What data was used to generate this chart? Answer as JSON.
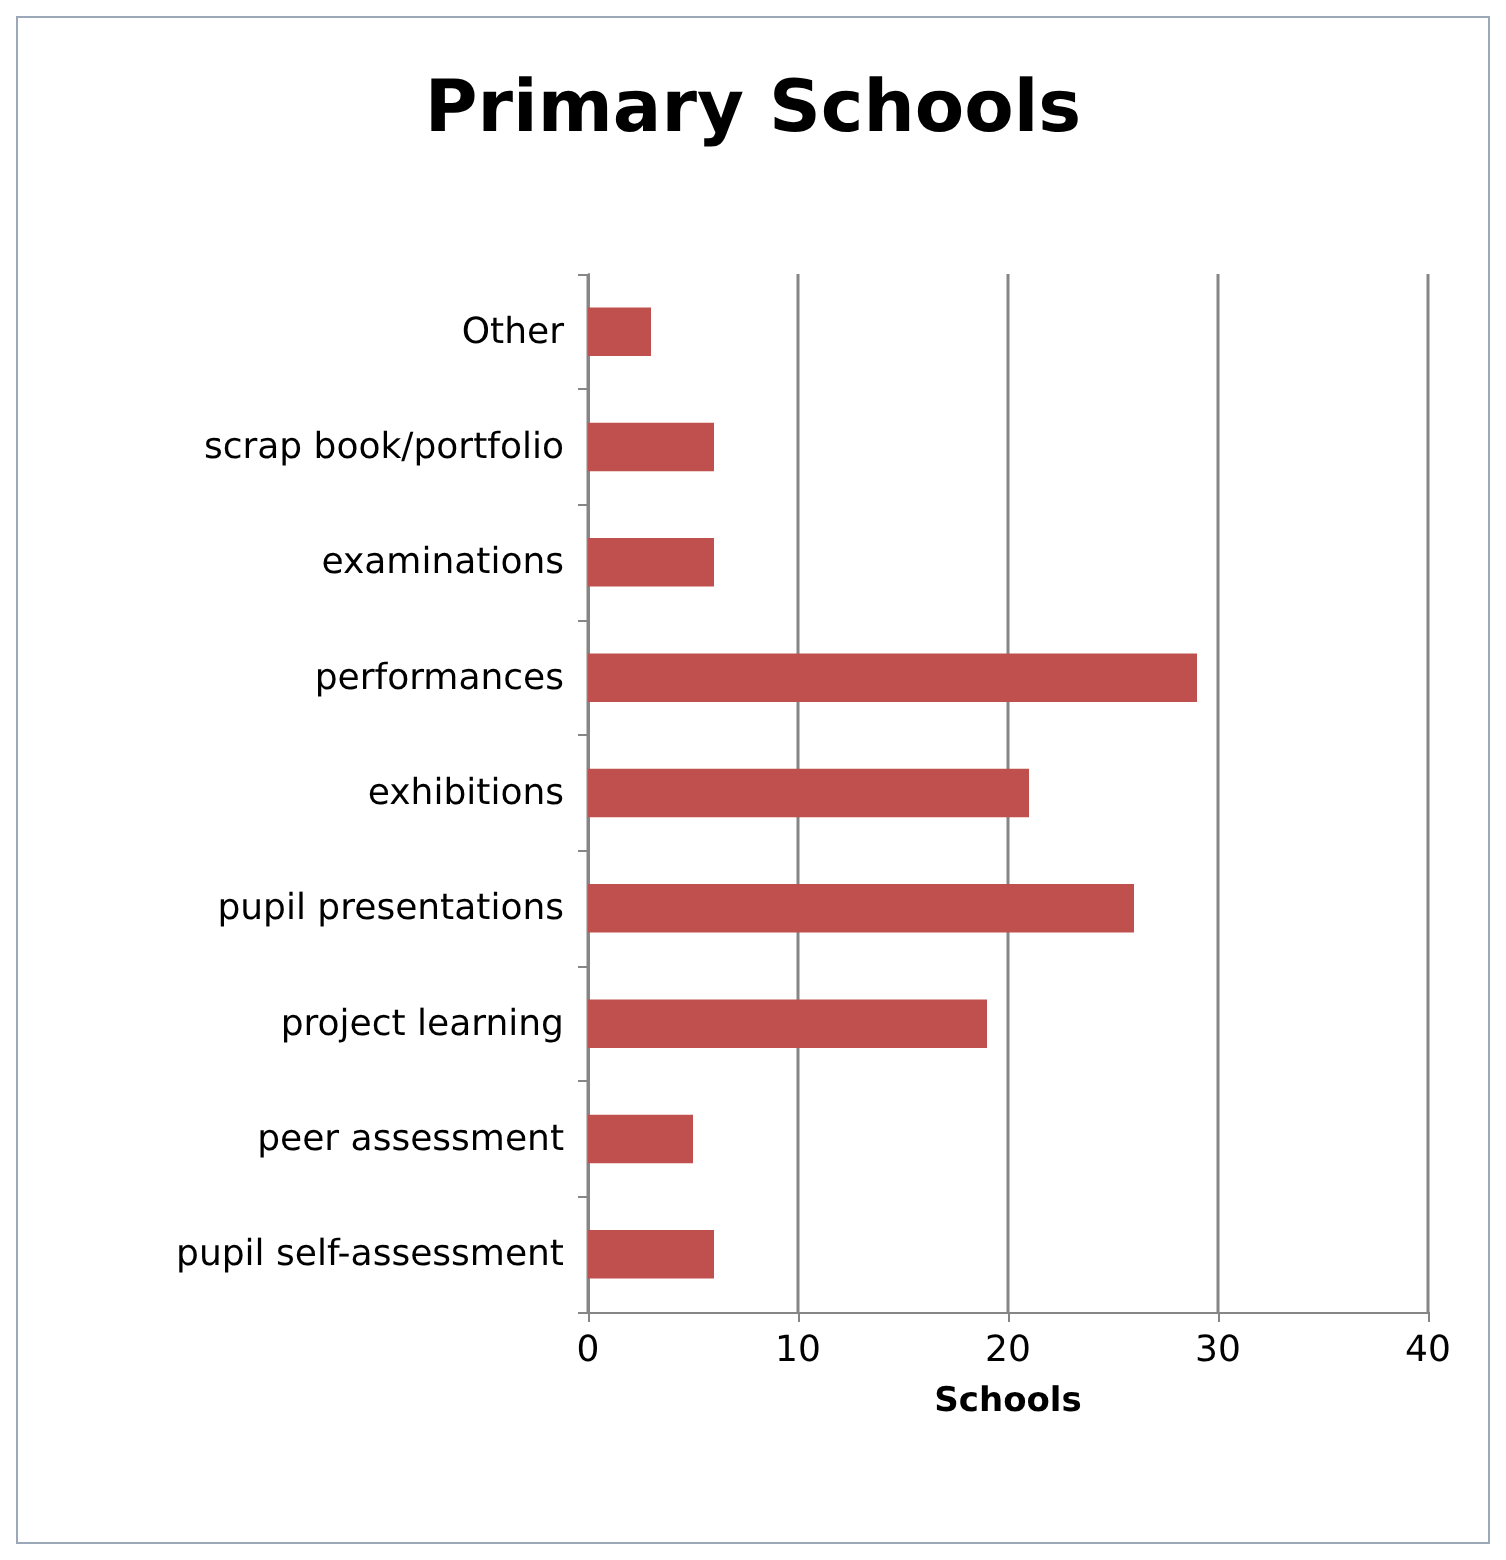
{
  "chart_data": {
    "type": "bar",
    "orientation": "horizontal",
    "title": "Primary Schools",
    "xlabel": "Schools",
    "categories": [
      "Other",
      "scrap book/portfolio",
      "examinations",
      "performances",
      "exhibitions",
      "pupil presentations",
      "project learning",
      "peer assessment",
      "pupil self-assessment"
    ],
    "values": [
      3,
      6,
      6,
      29,
      21,
      26,
      19,
      5,
      6
    ],
    "color": "#c0504d",
    "xlim": [
      0,
      40
    ],
    "xticks": [
      0,
      10,
      20,
      30,
      40
    ],
    "grid": "x"
  }
}
